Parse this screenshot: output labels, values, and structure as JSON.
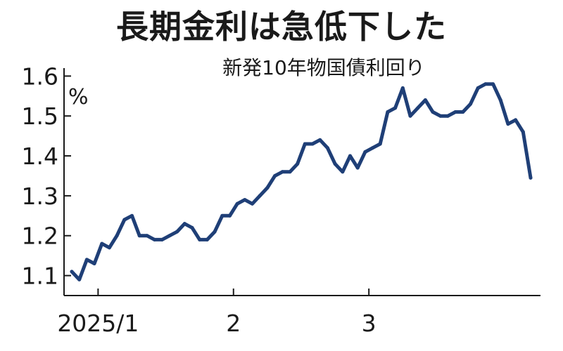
{
  "chart_data": {
    "type": "line",
    "title": "長期金利は急低下した",
    "subtitle": "新発10年物国債利回り",
    "ylabel": "%",
    "xlabel": "",
    "ylim": [
      1.05,
      1.62
    ],
    "yticks": [
      "1.1",
      "1.2",
      "1.3",
      "1.4",
      "1.5",
      "1.6"
    ],
    "xticks": [
      {
        "label": "2025/1",
        "index": 2
      },
      {
        "label": "2",
        "index": 20
      },
      {
        "label": "3",
        "index": 38
      }
    ],
    "grid": false,
    "color": "#1f3f77",
    "series": [
      {
        "values": [
          1.11,
          1.09,
          1.14,
          1.13,
          1.18,
          1.17,
          1.2,
          1.24,
          1.25,
          1.2,
          1.2,
          1.19,
          1.19,
          1.2,
          1.21,
          1.23,
          1.22,
          1.19,
          1.19,
          1.21,
          1.25,
          1.25,
          1.28,
          1.29,
          1.28,
          1.3,
          1.32,
          1.35,
          1.36,
          1.36,
          1.38,
          1.43,
          1.43,
          1.44,
          1.42,
          1.38,
          1.36,
          1.4,
          1.37,
          1.41,
          1.42,
          1.43,
          1.51,
          1.52,
          1.57,
          1.5,
          1.52,
          1.54,
          1.51,
          1.5,
          1.5,
          1.51,
          1.51,
          1.53,
          1.57,
          1.58,
          1.58,
          1.54,
          1.48,
          1.49,
          1.46,
          1.345
        ]
      }
    ]
  }
}
